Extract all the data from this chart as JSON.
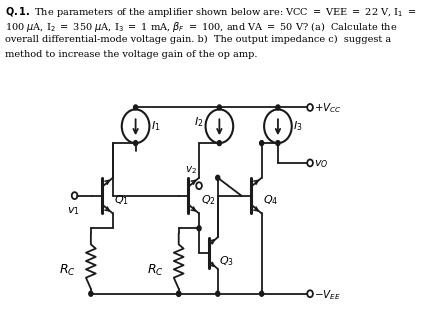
{
  "bg_color": "#ffffff",
  "line_color": "#1a1a1a",
  "text_color": "#000000",
  "fig_w": 4.34,
  "fig_h": 3.09,
  "dpi": 100
}
